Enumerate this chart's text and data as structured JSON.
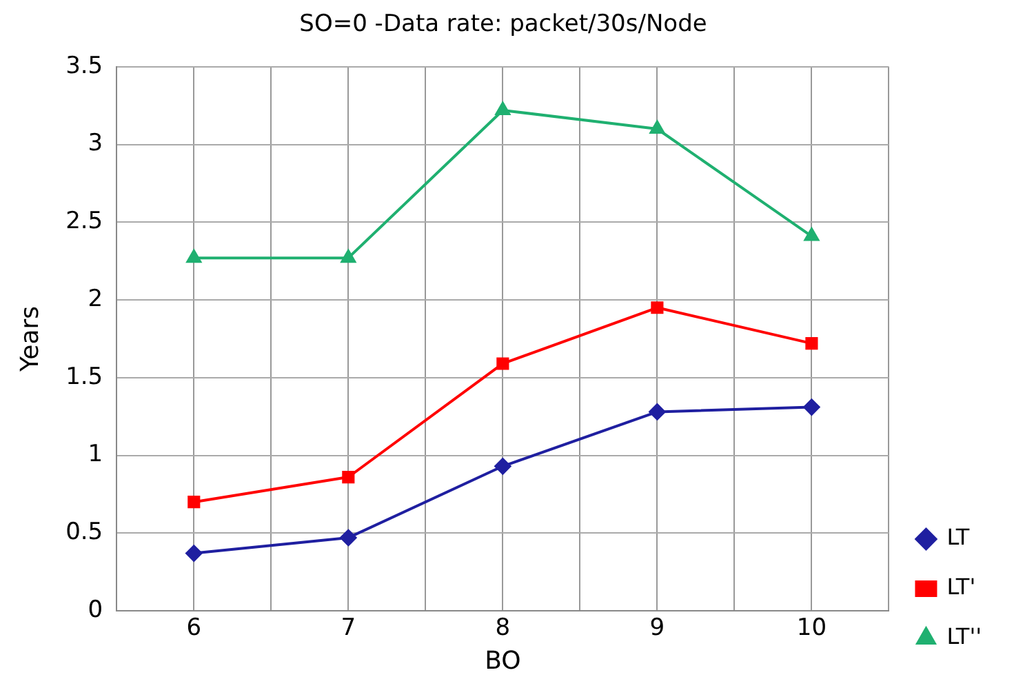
{
  "chart_data": {
    "type": "line",
    "title": "SO=0 -Data rate: packet/30s/Node",
    "xlabel": "BO",
    "ylabel": "Years",
    "x": [
      6,
      7,
      8,
      9,
      10
    ],
    "xlim": [
      5.5,
      10.5
    ],
    "xticks": [
      {
        "value": 5.5,
        "label": null
      },
      6,
      {
        "value": 6.5,
        "label": null
      },
      7,
      {
        "value": 7.5,
        "label": null
      },
      8,
      {
        "value": 8.5,
        "label": null
      },
      9,
      {
        "value": 9.5,
        "label": null
      },
      10,
      {
        "value": 10.5,
        "label": null
      }
    ],
    "ylim": [
      0,
      3.5
    ],
    "yticks": [
      0,
      0.5,
      1,
      1.5,
      2,
      2.5,
      3,
      3.5
    ],
    "grid": true,
    "legend": "right",
    "line_style": "solid",
    "series": [
      {
        "name": "LT",
        "color": "#1f1fa0",
        "marker": "diamond",
        "values": [
          0.37,
          0.47,
          0.93,
          1.28,
          1.31
        ]
      },
      {
        "name": "LT'",
        "color": "#ff0000",
        "marker": "square",
        "values": [
          0.7,
          0.86,
          1.59,
          1.95,
          1.72
        ]
      },
      {
        "name": "LT''",
        "color": "#1fb070",
        "marker": "triangle",
        "values": [
          2.27,
          2.27,
          3.22,
          3.1,
          2.41
        ]
      }
    ]
  }
}
